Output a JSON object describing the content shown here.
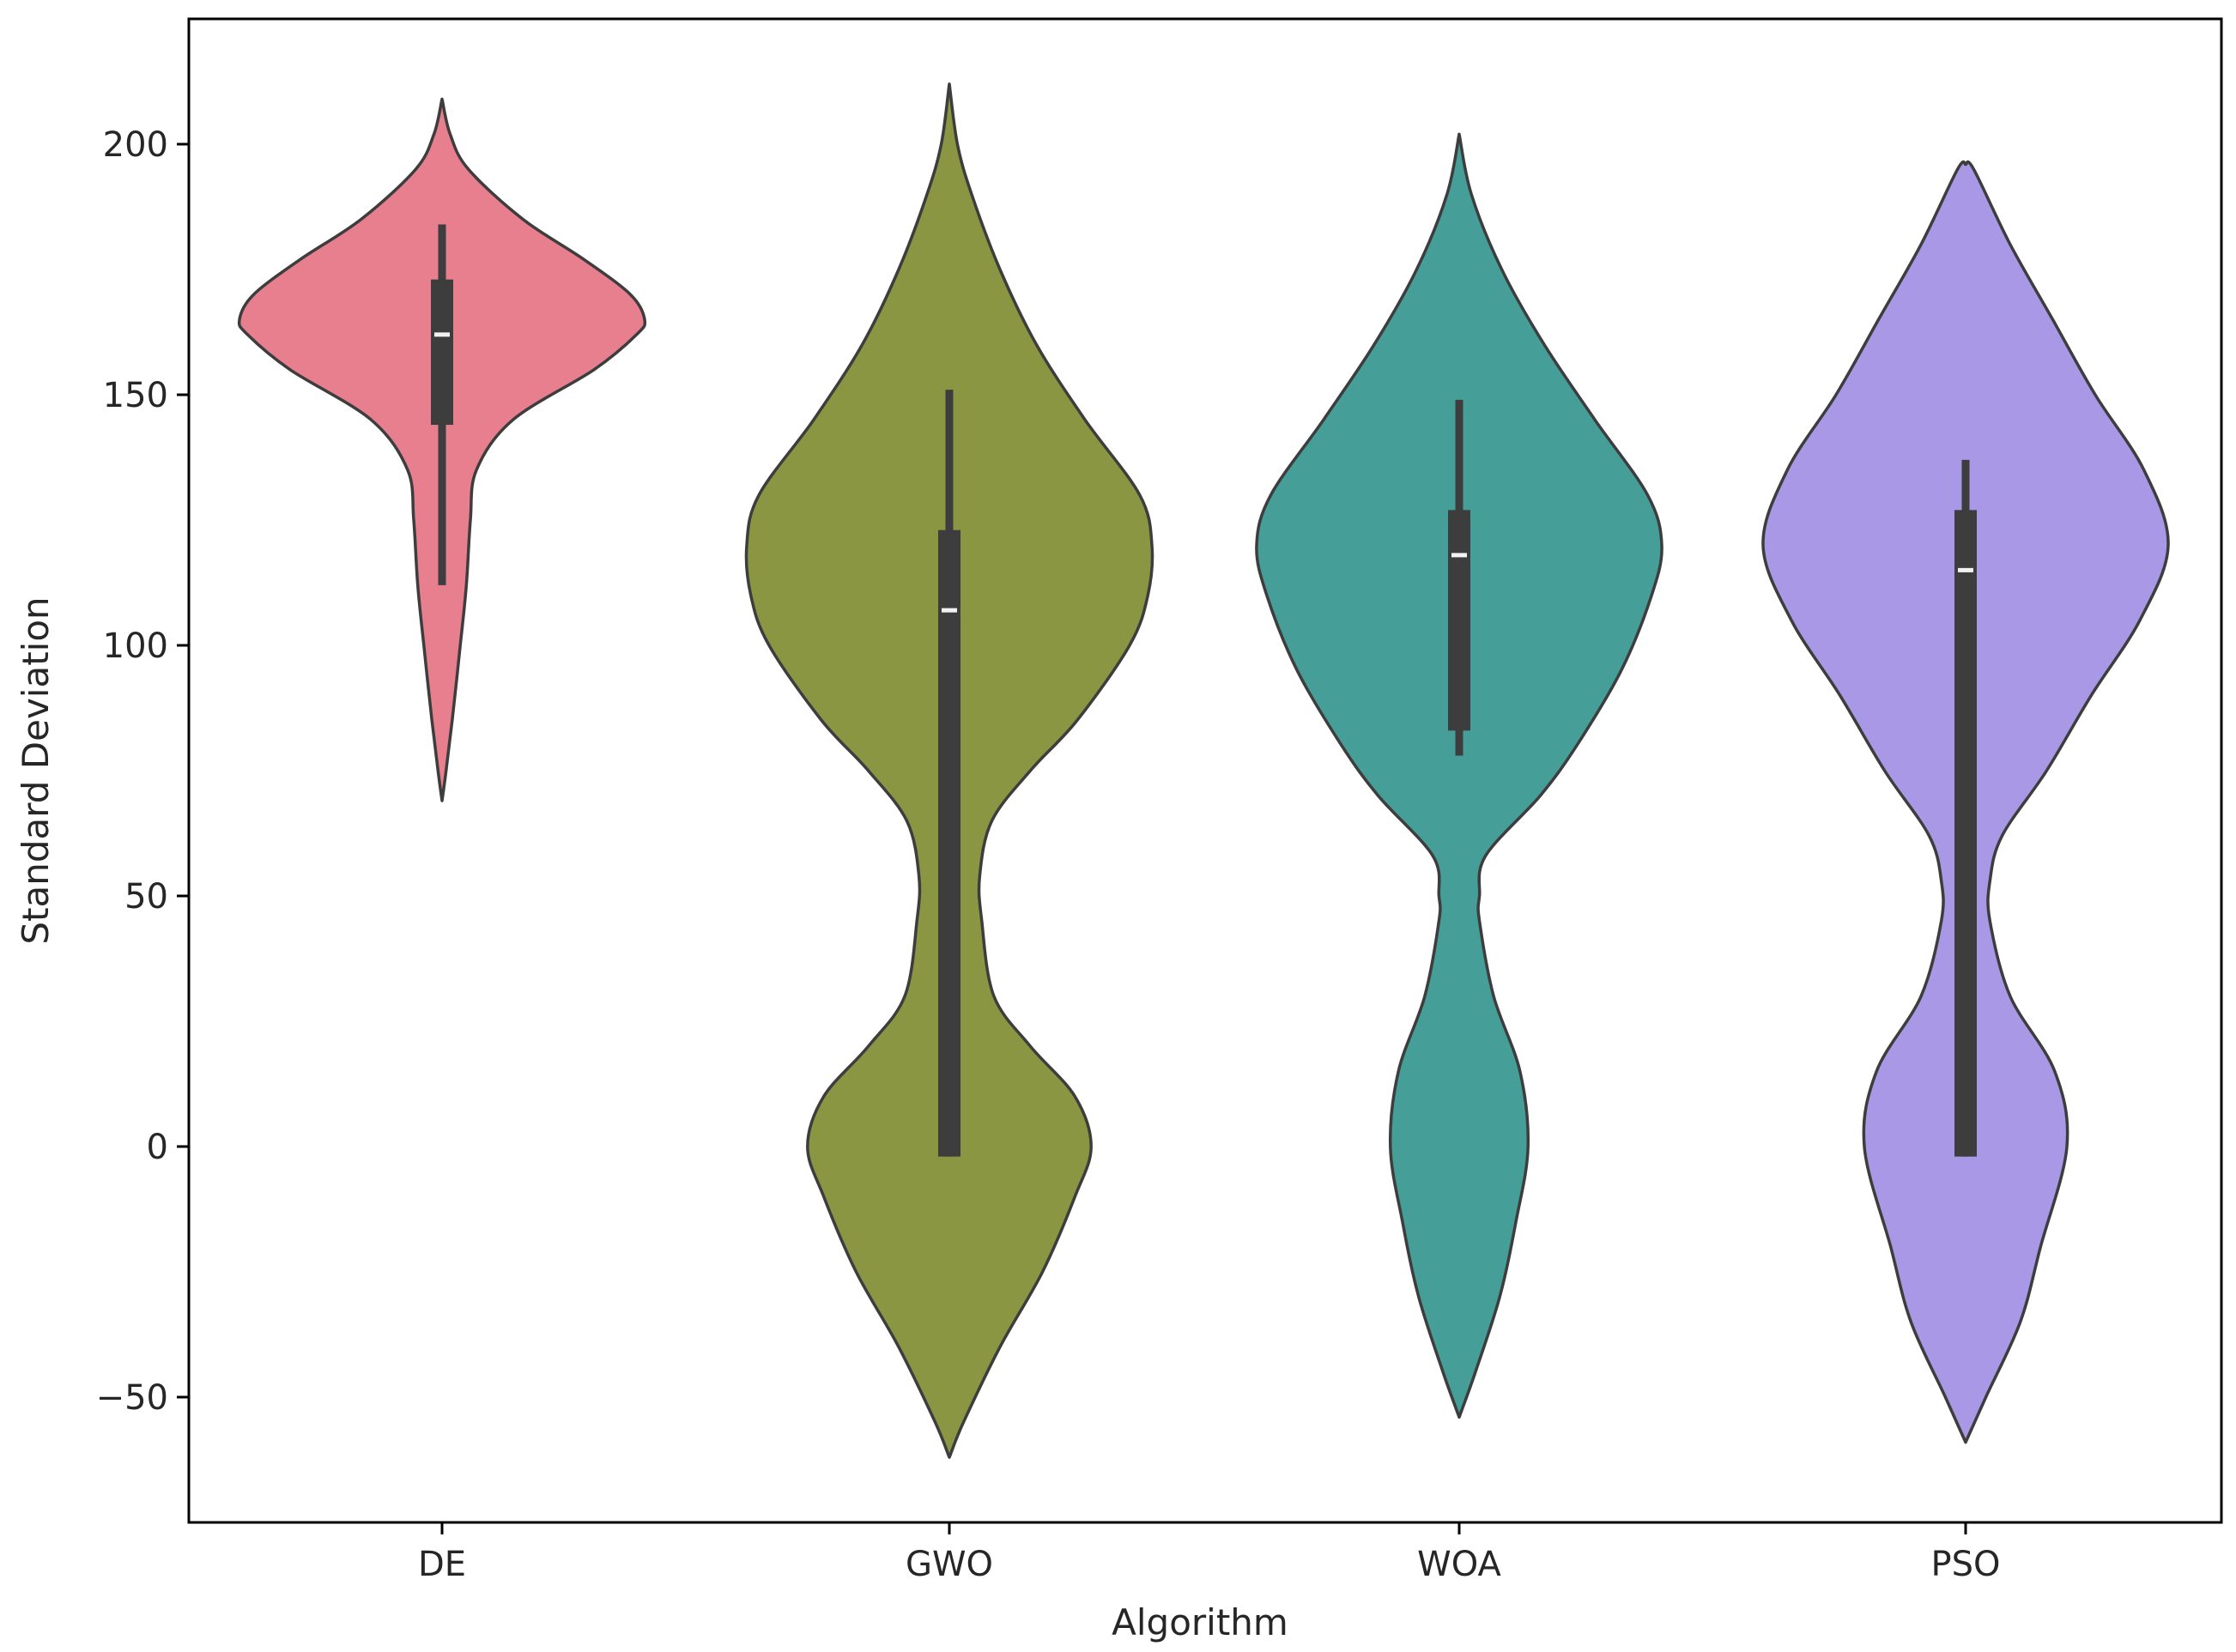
{
  "chart_data": {
    "type": "violin",
    "title": "",
    "xlabel": "Algorithm",
    "ylabel": "Standard Deviation",
    "categories": [
      "DE",
      "GWO",
      "WOA",
      "PSO"
    ],
    "ylim": [
      -75,
      225
    ],
    "yticks": [
      -50,
      0,
      50,
      100,
      150,
      200
    ],
    "ytick_labels": [
      "−50",
      "0",
      "50",
      "100",
      "150",
      "200"
    ],
    "grid": false,
    "legend": "none",
    "colors": {
      "DE": "#e77f8f",
      "GWO": "#8a9641",
      "WOA": "#469e98",
      "PSO": "#a998e6",
      "outline": "#3d3d3d",
      "box": "#3d3d3d",
      "median": "#f2f2f2"
    },
    "violins": [
      {
        "name": "DE",
        "profile": [
          [
            69,
            0
          ],
          [
            75,
            0.02
          ],
          [
            85,
            0.05
          ],
          [
            100,
            0.09
          ],
          [
            112,
            0.12
          ],
          [
            125,
            0.14
          ],
          [
            135,
            0.17
          ],
          [
            145,
            0.35
          ],
          [
            155,
            0.75
          ],
          [
            162,
            0.96
          ],
          [
            165,
            1.0
          ],
          [
            170,
            0.93
          ],
          [
            177,
            0.7
          ],
          [
            185,
            0.4
          ],
          [
            195,
            0.13
          ],
          [
            202,
            0.04
          ],
          [
            209,
            0
          ]
        ],
        "whisker": [
          112,
          184
        ],
        "q1": 144,
        "q3": 173,
        "median": 162
      },
      {
        "name": "GWO",
        "profile": [
          [
            -62,
            0
          ],
          [
            -55,
            0.07
          ],
          [
            -40,
            0.25
          ],
          [
            -25,
            0.46
          ],
          [
            -10,
            0.62
          ],
          [
            0,
            0.7
          ],
          [
            10,
            0.62
          ],
          [
            20,
            0.4
          ],
          [
            30,
            0.22
          ],
          [
            45,
            0.16
          ],
          [
            54,
            0.15
          ],
          [
            65,
            0.21
          ],
          [
            75,
            0.4
          ],
          [
            85,
            0.63
          ],
          [
            100,
            0.89
          ],
          [
            110,
            0.98
          ],
          [
            120,
            1.0
          ],
          [
            130,
            0.94
          ],
          [
            145,
            0.67
          ],
          [
            160,
            0.43
          ],
          [
            175,
            0.25
          ],
          [
            190,
            0.11
          ],
          [
            200,
            0.04
          ],
          [
            212,
            0
          ]
        ],
        "whisker": [
          -2,
          151
        ],
        "q1": -2,
        "q3": 123,
        "median": 107
      },
      {
        "name": "WOA",
        "profile": [
          [
            -54,
            0
          ],
          [
            -45,
            0.08
          ],
          [
            -30,
            0.2
          ],
          [
            -15,
            0.28
          ],
          [
            0,
            0.34
          ],
          [
            15,
            0.3
          ],
          [
            30,
            0.17
          ],
          [
            45,
            0.1
          ],
          [
            50,
            0.1
          ],
          [
            58,
            0.13
          ],
          [
            70,
            0.4
          ],
          [
            80,
            0.58
          ],
          [
            95,
            0.8
          ],
          [
            110,
            0.95
          ],
          [
            120,
            1.0
          ],
          [
            130,
            0.93
          ],
          [
            145,
            0.67
          ],
          [
            160,
            0.42
          ],
          [
            175,
            0.21
          ],
          [
            190,
            0.06
          ],
          [
            202,
            0
          ]
        ],
        "whisker": [
          78,
          149
        ],
        "q1": 83,
        "q3": 127,
        "median": 118
      },
      {
        "name": "PSO",
        "profile": [
          [
            -59,
            0
          ],
          [
            -50,
            0.1
          ],
          [
            -35,
            0.27
          ],
          [
            -20,
            0.37
          ],
          [
            0,
            0.5
          ],
          [
            15,
            0.44
          ],
          [
            30,
            0.22
          ],
          [
            45,
            0.12
          ],
          [
            53,
            0.12
          ],
          [
            62,
            0.18
          ],
          [
            75,
            0.4
          ],
          [
            90,
            0.62
          ],
          [
            105,
            0.86
          ],
          [
            120,
            1.0
          ],
          [
            135,
            0.88
          ],
          [
            150,
            0.64
          ],
          [
            165,
            0.43
          ],
          [
            180,
            0.22
          ],
          [
            195,
            0.04
          ],
          [
            196,
            0
          ]
        ],
        "whisker": [
          -2,
          137
        ],
        "q1": -2,
        "q3": 127,
        "median": 115
      }
    ]
  }
}
